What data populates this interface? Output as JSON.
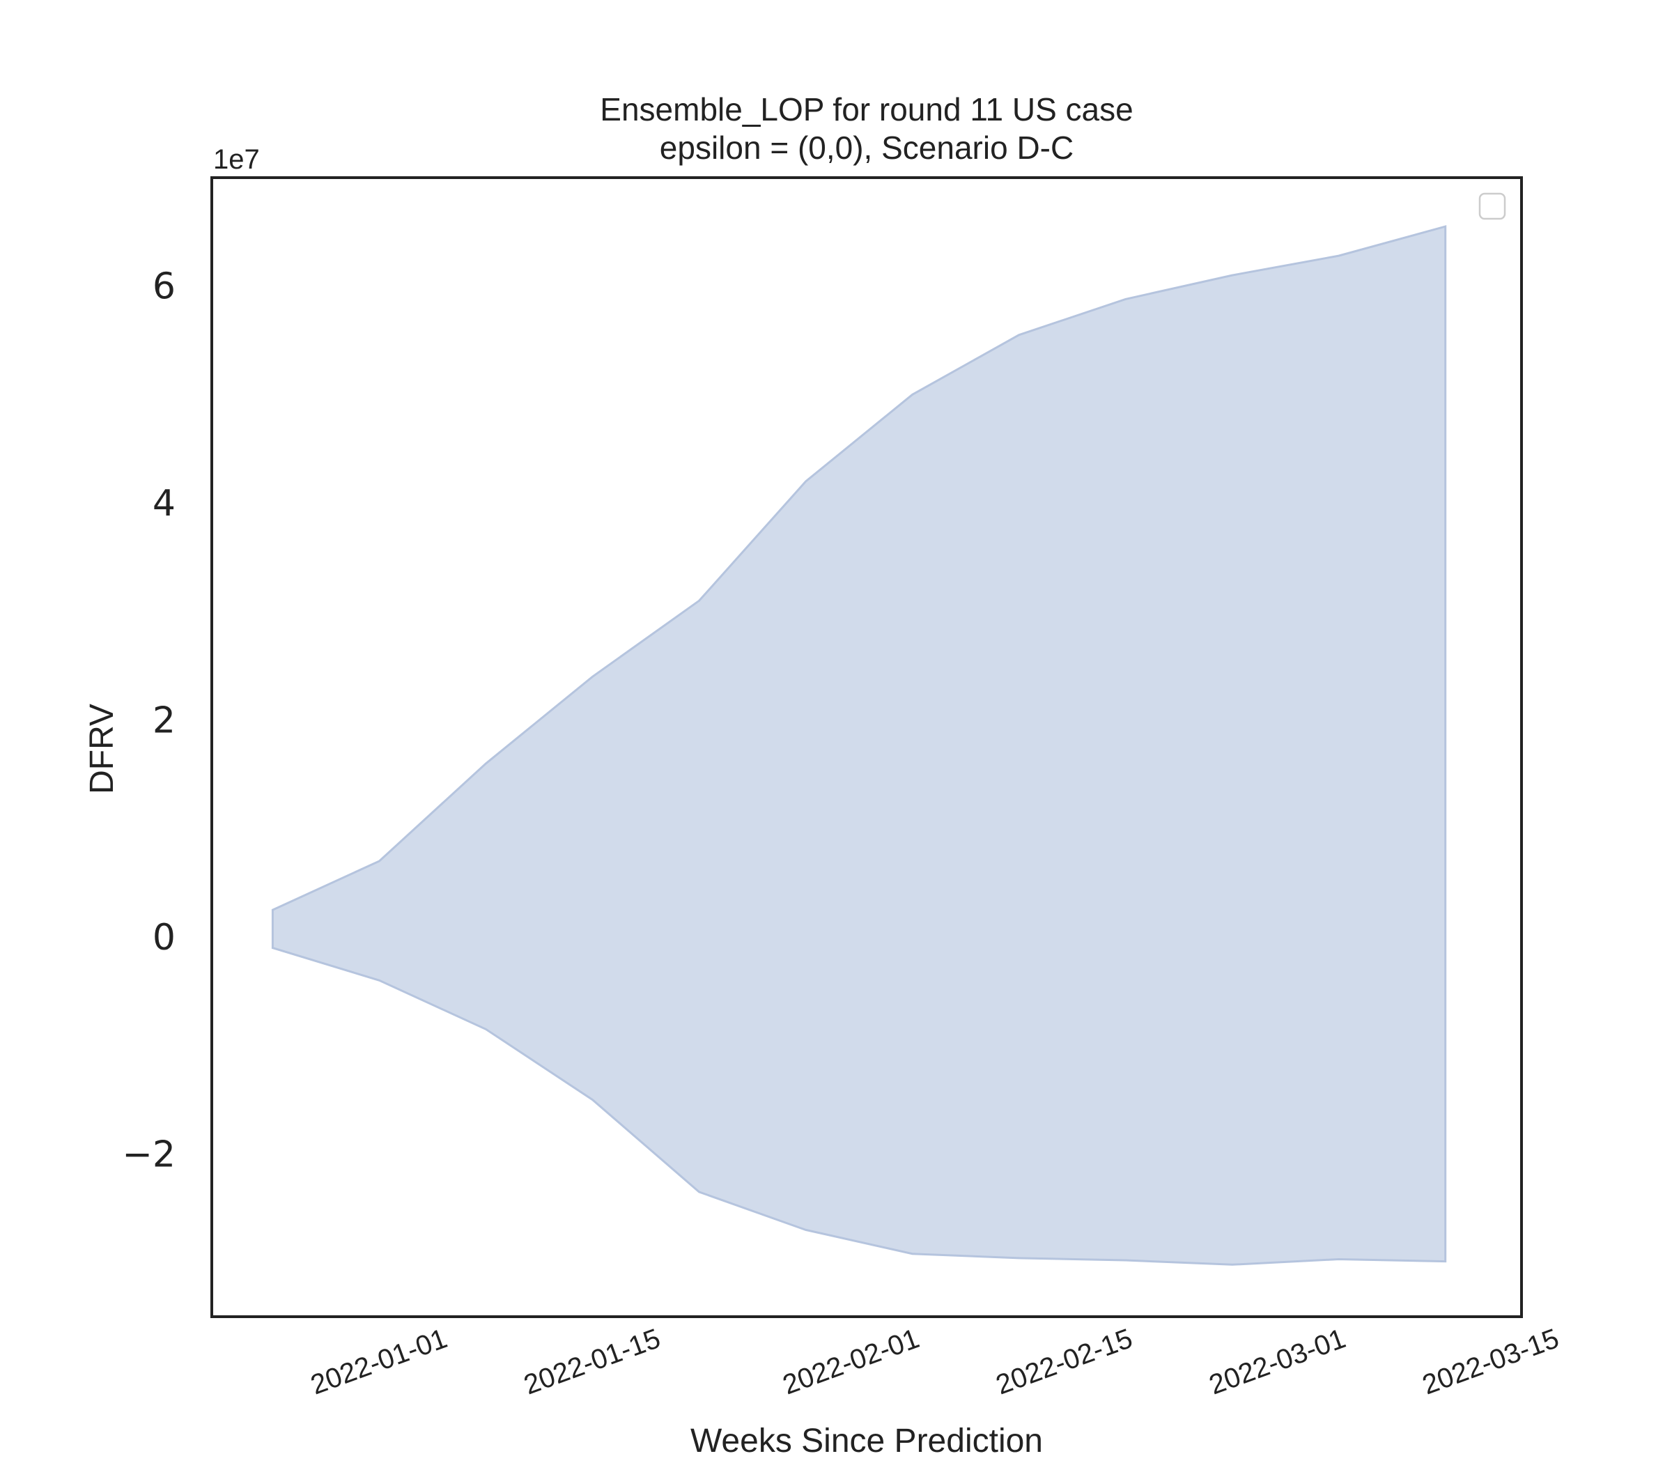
{
  "chart_data": {
    "type": "area",
    "title": "Ensemble_LOP for round 11 US case",
    "subtitle": "epsilon = (0,0), Scenario D-C",
    "xlabel": "Weeks Since Prediction",
    "ylabel": "DFRV",
    "y_offset_label": "1e7",
    "y_scale": 10000000,
    "x_tick_labels": [
      "2022-01-01",
      "2022-01-15",
      "2022-02-01",
      "2022-02-15",
      "2022-03-01",
      "2022-03-15"
    ],
    "x_tick_dates": [
      "2022-01-01",
      "2022-01-15",
      "2022-02-01",
      "2022-02-15",
      "2022-03-01",
      "2022-03-15"
    ],
    "y_tick_values": [
      -2,
      0,
      2,
      4,
      6
    ],
    "y_tick_labels": [
      "−2",
      "0",
      "2",
      "4",
      "6"
    ],
    "xlim": [
      "2021-12-21",
      "2022-03-17"
    ],
    "ylim": [
      -3.5,
      7.0
    ],
    "grid": false,
    "legend": "top-right",
    "legend_entries": [],
    "fill_color": "#c6d2e6",
    "edge_color": "#b5c4de",
    "series": [
      {
        "x": [
          "2021-12-25",
          "2022-01-01",
          "2022-01-08",
          "2022-01-15",
          "2022-01-22",
          "2022-01-29",
          "2022-02-05",
          "2022-02-12",
          "2022-02-19",
          "2022-02-26",
          "2022-03-05",
          "2022-03-12"
        ],
        "lower": [
          -0.1,
          -0.4,
          -0.85,
          -1.5,
          -2.35,
          -2.7,
          -2.92,
          -2.96,
          -2.98,
          -3.02,
          -2.97,
          -2.99
        ],
        "upper": [
          0.25,
          0.7,
          1.6,
          2.4,
          3.1,
          4.2,
          5.0,
          5.55,
          5.88,
          6.1,
          6.28,
          6.55
        ]
      }
    ]
  }
}
